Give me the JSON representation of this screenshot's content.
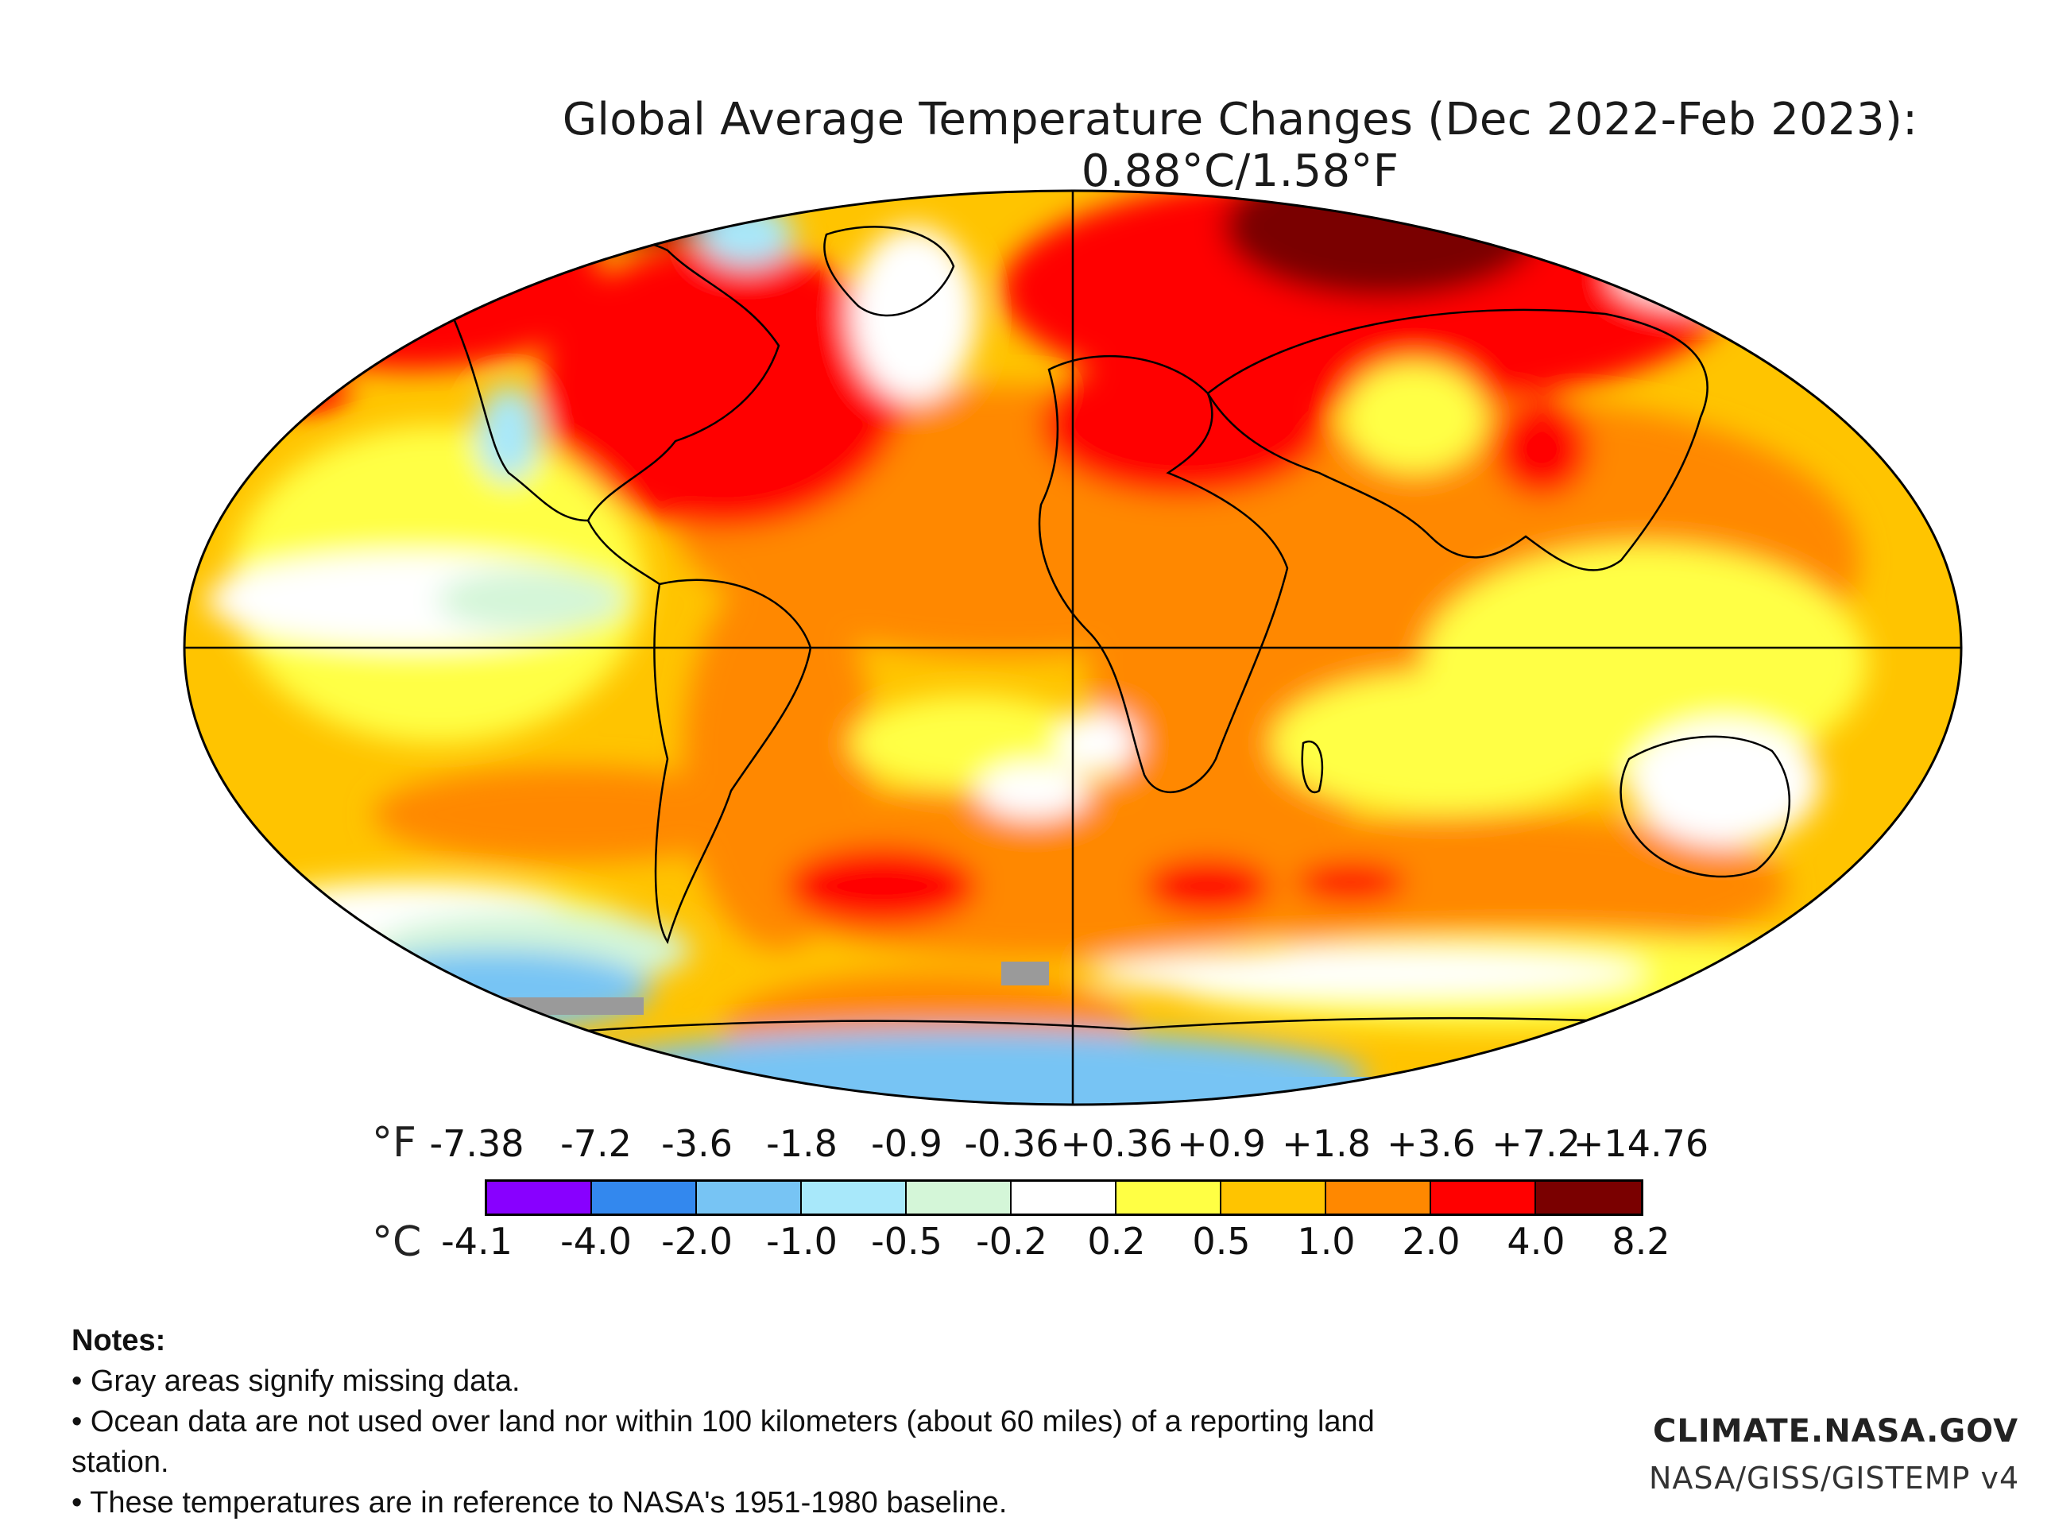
{
  "title": "Global Average Temperature Changes (Dec 2022-Feb 2023): 0.88°C/1.58°F",
  "legend": {
    "fahrenheit_unit": "°F",
    "celsius_unit": "°C",
    "fahrenheit_ticks": [
      "-7.38",
      "-7.2",
      "-3.6",
      "-1.8",
      "-0.9",
      "-0.36",
      "+0.36",
      "+0.9",
      "+1.8",
      "+3.6",
      "+7.2",
      "+14.76"
    ],
    "celsius_ticks": [
      "-4.1",
      "-4.0",
      "-2.0",
      "-1.0",
      "-0.5",
      "-0.2",
      "0.2",
      "0.5",
      "1.0",
      "2.0",
      "4.0",
      "8.2"
    ],
    "colors": [
      "#8800ff",
      "#3388ee",
      "#77c4f4",
      "#a8e8fa",
      "#d4f6d8",
      "#ffffff",
      "#ffff44",
      "#ffc400",
      "#ff8800",
      "#ff0000",
      "#7a0000"
    ],
    "missing_data_color": "#9a9a9a"
  },
  "notes": {
    "heading": "Notes:",
    "items": [
      "• Gray areas signify missing data.",
      "• Ocean data are not used over land nor within 100 kilometers (about 60 miles) of a reporting land station.",
      "• These temperatures are in reference to NASA's 1951-1980 baseline."
    ]
  },
  "credits": {
    "site": "CLIMATE.NASA.GOV",
    "source": "NASA/GISS/GISTEMP v4"
  },
  "map_regions": [
    {
      "name": "arctic-russia",
      "anomaly_c": 5.0
    },
    {
      "name": "northern-eurasia",
      "anomaly_c": 3.0
    },
    {
      "name": "eastern-north-america",
      "anomaly_c": 3.0
    },
    {
      "name": "greenland-sea",
      "anomaly_c": 0.0
    },
    {
      "name": "western-north-america",
      "anomaly_c": -1.0
    },
    {
      "name": "southern-ocean-pacific",
      "anomaly_c": -1.0
    },
    {
      "name": "antarctica-east",
      "anomaly_c": -1.0
    },
    {
      "name": "south-atlantic-patch",
      "anomaly_c": 2.5
    },
    {
      "name": "southern-indian-patch",
      "anomaly_c": 2.5
    },
    {
      "name": "australia",
      "anomaly_c": 0.0
    },
    {
      "name": "tropical-pacific",
      "anomaly_c": 0.3
    },
    {
      "name": "africa",
      "anomaly_c": 1.2
    }
  ]
}
